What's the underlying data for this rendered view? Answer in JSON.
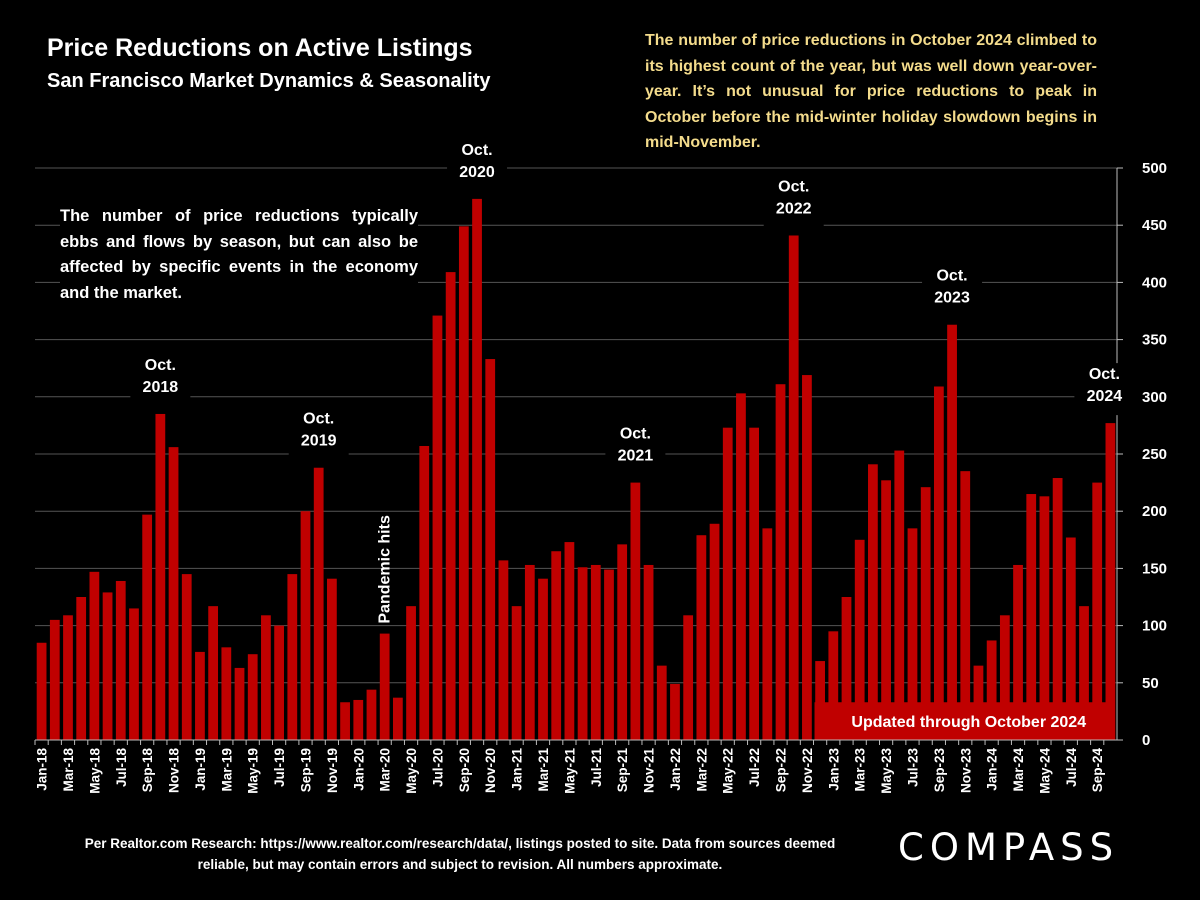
{
  "header": {
    "title": "Price Reductions on Active Listings",
    "subtitle": "San Francisco Market Dynamics & Seasonality"
  },
  "notes": {
    "right": "The number of price reductions in October 2024 climbed to its highest count of the year, but was well down year-over-year. It’s not unusual for price reductions to peak in October before the mid-winter holiday slowdown begins in mid-November.",
    "left": "The number of price reductions typically ebbs and flows by season, but can also be affected by specific events in the economy and the market."
  },
  "footer": {
    "source": "Per Realtor.com Research:  https://www.realtor.com/research/data/, listings posted to site. Data from sources deemed reliable, but may contain errors and subject to revision. All numbers approximate.",
    "logo": "COMPASS"
  },
  "colors": {
    "bar": "#c00000",
    "background": "#000000",
    "note_right": "#f4dc8c",
    "grid": "#555555"
  },
  "chart_data": {
    "type": "bar",
    "title": "Price Reductions on Active Listings",
    "xlabel": "",
    "ylabel": "",
    "ylim": [
      0,
      500
    ],
    "yticks": [
      0,
      50,
      100,
      150,
      200,
      250,
      300,
      350,
      400,
      450,
      500
    ],
    "y_axis_side": "right",
    "grid": true,
    "categories": [
      "Jan-18",
      "Feb-18",
      "Mar-18",
      "Apr-18",
      "May-18",
      "Jun-18",
      "Jul-18",
      "Aug-18",
      "Sep-18",
      "Oct-18",
      "Nov-18",
      "Dec-18",
      "Jan-19",
      "Feb-19",
      "Mar-19",
      "Apr-19",
      "May-19",
      "Jun-19",
      "Jul-19",
      "Aug-19",
      "Sep-19",
      "Oct-19",
      "Nov-19",
      "Dec-19",
      "Jan-20",
      "Feb-20",
      "Mar-20",
      "Apr-20",
      "May-20",
      "Jun-20",
      "Jul-20",
      "Aug-20",
      "Sep-20",
      "Oct-20",
      "Nov-20",
      "Dec-20",
      "Jan-21",
      "Feb-21",
      "Mar-21",
      "Apr-21",
      "May-21",
      "Jun-21",
      "Jul-21",
      "Aug-21",
      "Sep-21",
      "Oct-21",
      "Nov-21",
      "Dec-21",
      "Jan-22",
      "Feb-22",
      "Mar-22",
      "Apr-22",
      "May-22",
      "Jun-22",
      "Jul-22",
      "Aug-22",
      "Sep-22",
      "Oct-22",
      "Nov-22",
      "Dec-22",
      "Jan-23",
      "Feb-23",
      "Mar-23",
      "Apr-23",
      "May-23",
      "Jun-23",
      "Jul-23",
      "Aug-23",
      "Sep-23",
      "Oct-23",
      "Nov-23",
      "Dec-23",
      "Jan-24",
      "Feb-24",
      "Mar-24",
      "Apr-24",
      "May-24",
      "Jun-24",
      "Jul-24",
      "Aug-24",
      "Sep-24",
      "Oct-24"
    ],
    "tick_labels_shown": "every other month starting Jan-18",
    "values": [
      85,
      105,
      109,
      125,
      147,
      129,
      139,
      115,
      197,
      285,
      256,
      145,
      77,
      117,
      81,
      63,
      75,
      109,
      100,
      145,
      200,
      238,
      141,
      33,
      35,
      44,
      93,
      37,
      117,
      257,
      371,
      409,
      449,
      473,
      333,
      157,
      117,
      153,
      141,
      165,
      173,
      151,
      153,
      149,
      171,
      225,
      153,
      65,
      49,
      109,
      179,
      189,
      273,
      303,
      273,
      185,
      311,
      441,
      319,
      69,
      95,
      125,
      175,
      241,
      227,
      253,
      185,
      221,
      309,
      363,
      235,
      65,
      87,
      109,
      153,
      215,
      213,
      229,
      177,
      117,
      225,
      277
    ],
    "annotations": [
      {
        "text": [
          "Oct.",
          "2018"
        ],
        "category": "Oct-18"
      },
      {
        "text": [
          "Oct.",
          "2019"
        ],
        "category": "Oct-19"
      },
      {
        "text": [
          "Oct.",
          "2020"
        ],
        "category": "Oct-20"
      },
      {
        "text": [
          "Oct.",
          "2021"
        ],
        "category": "Oct-21"
      },
      {
        "text": [
          "Oct.",
          "2022"
        ],
        "category": "Oct-22"
      },
      {
        "text": [
          "Oct.",
          "2023"
        ],
        "category": "Oct-23"
      },
      {
        "text": [
          "Oct.",
          "2024"
        ],
        "category": "Oct-24"
      },
      {
        "text": [
          "Pandemic hits"
        ],
        "category": "Mar-20",
        "rotated": true
      }
    ],
    "banner": "Updated through October 2024",
    "series": [
      {
        "name": "Price reductions",
        "color": "#c00000"
      }
    ]
  }
}
